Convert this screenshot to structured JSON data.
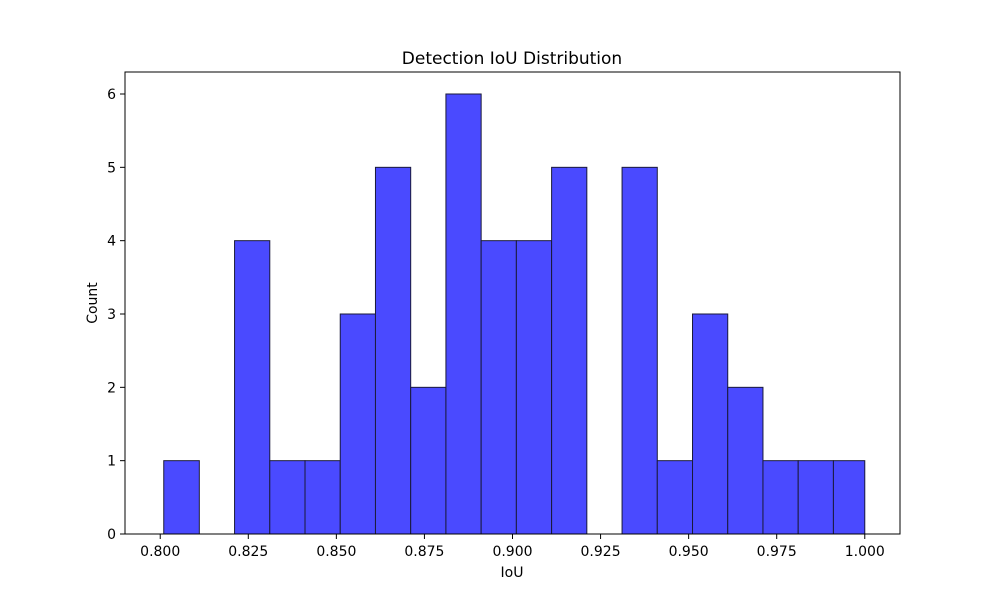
{
  "chart_data": {
    "type": "bar",
    "title": "Detection IoU Distribution",
    "xlabel": "IoU",
    "ylabel": "Count",
    "xlim": [
      0.79,
      1.01
    ],
    "ylim": [
      0,
      6.3
    ],
    "grid": false,
    "bar_color": "#4a4aff",
    "edge_color": "#1a1a3a",
    "bin_edges": [
      0.801,
      0.8111,
      0.8211,
      0.8311,
      0.8411,
      0.8511,
      0.8611,
      0.8711,
      0.8811,
      0.8911,
      0.9011,
      0.9111,
      0.9211,
      0.9311,
      0.9411,
      0.9511,
      0.9611,
      0.9711,
      0.9811,
      0.9911,
      1.0
    ],
    "counts": [
      1,
      0,
      4,
      1,
      1,
      3,
      5,
      2,
      6,
      4,
      4,
      5,
      0,
      5,
      1,
      3,
      2,
      1,
      1,
      1
    ],
    "x_ticks": [
      "0.800",
      "0.825",
      "0.850",
      "0.875",
      "0.900",
      "0.925",
      "0.950",
      "0.975",
      "1.000"
    ],
    "y_ticks": [
      "0",
      "1",
      "2",
      "3",
      "4",
      "5",
      "6"
    ]
  }
}
